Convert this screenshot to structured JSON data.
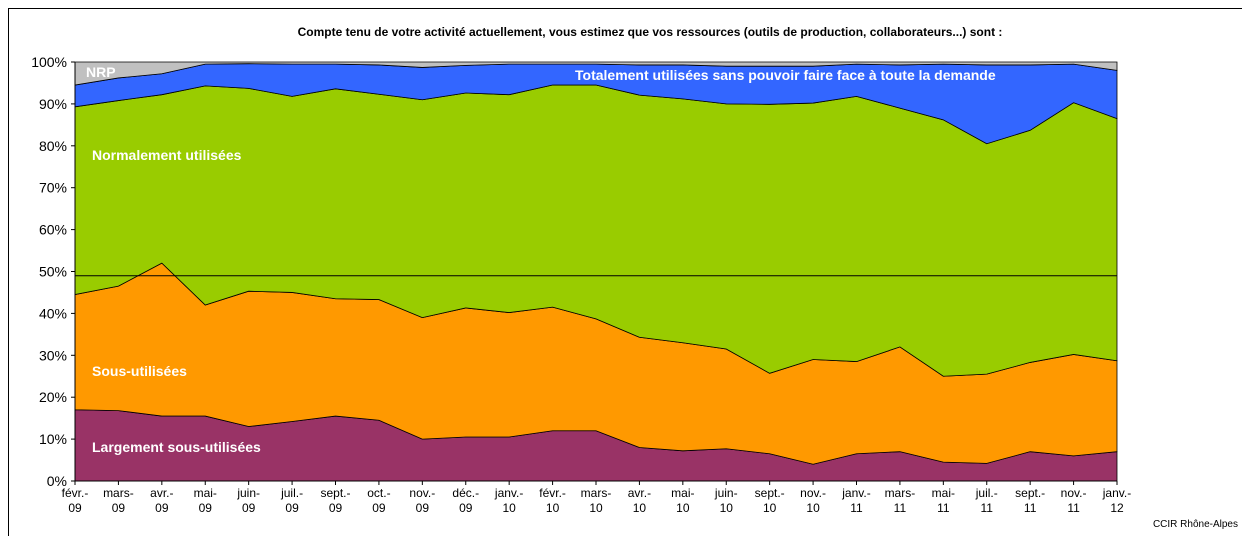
{
  "chart_data": {
    "type": "stacked_area",
    "title": "Compte tenu de votre activité actuellement, vous estimez que vos ressources (outils de production, collaborateurs...) sont :",
    "source": "CCIR Rhône-Alpes",
    "categories": [
      "févr.-\n09",
      "mars-\n09",
      "avr.-\n09",
      "mai-\n09",
      "juin-\n09",
      "juil.-\n09",
      "sept.-\n09",
      "oct.-\n09",
      "nov.-\n09",
      "déc.-\n09",
      "janv.-\n10",
      "févr.-\n10",
      "mars-\n10",
      "avr.-\n10",
      "mai-\n10",
      "juin-\n10",
      "sept.-\n10",
      "nov.-\n10",
      "janv.-\n11",
      "mars-\n11",
      "mai-\n11",
      "juil.-\n11",
      "sept.-\n11",
      "nov.-\n11",
      "janv.-\n12"
    ],
    "series": [
      {
        "name": "Largement sous-utilisées",
        "color": "#993366",
        "values": [
          17,
          16.8,
          15.5,
          15.5,
          13,
          14.2,
          15.5,
          14.5,
          10,
          10.5,
          10.5,
          12,
          12,
          8,
          7.2,
          7.7,
          6.5,
          4,
          6.5,
          7,
          4.5,
          4.2,
          7,
          6,
          7
        ]
      },
      {
        "name": "Sous-utilisées",
        "color": "#ff9900",
        "values": [
          27.5,
          29.7,
          36.5,
          26.5,
          32.3,
          30.8,
          28,
          28.8,
          29,
          30.8,
          29.7,
          29.5,
          26.7,
          26.3,
          25.8,
          23.8,
          19.2,
          25,
          22,
          25,
          20.5,
          21.3,
          21.3,
          24.2,
          21.7
        ]
      },
      {
        "name": "Normalement utilisées",
        "color": "#99cc00",
        "values": [
          44.8,
          44.3,
          40.2,
          52.3,
          48.4,
          46.8,
          50.1,
          49,
          52,
          51.3,
          52,
          53,
          55.8,
          57.8,
          58.2,
          58.5,
          64.2,
          61.2,
          63.3,
          57,
          61.2,
          55,
          55.4,
          60.1,
          57.8
        ]
      },
      {
        "name": "Totalement utilisées sans pouvoir faire face à toute la demande",
        "color": "#3366ff",
        "values": [
          5.2,
          5.4,
          5,
          5.2,
          5.9,
          7.7,
          5.9,
          7,
          7.7,
          6.6,
          7.3,
          5,
          5,
          7.2,
          8.1,
          9,
          9.1,
          8.8,
          7.7,
          10.3,
          13.3,
          18.8,
          15.6,
          9.2,
          11.5
        ]
      },
      {
        "name": "NRP",
        "color": "#c0c0c0",
        "values": [
          5.5,
          3.8,
          2.8,
          0.5,
          0.4,
          0.5,
          0.5,
          0.7,
          1.3,
          0.8,
          0.5,
          0.5,
          0.5,
          0.7,
          0.7,
          1,
          1,
          1,
          0.5,
          0.7,
          0.5,
          0.7,
          0.7,
          0.5,
          2
        ]
      }
    ],
    "reference_line": 49,
    "ylim": [
      0,
      100
    ],
    "yticks": [
      {
        "value": 0,
        "label": "0%"
      },
      {
        "value": 10,
        "label": "10%"
      },
      {
        "value": 20,
        "label": "20%"
      },
      {
        "value": 30,
        "label": "30%"
      },
      {
        "value": 40,
        "label": "40%"
      },
      {
        "value": 50,
        "label": "50%"
      },
      {
        "value": 60,
        "label": "60%"
      },
      {
        "value": 70,
        "label": "70%"
      },
      {
        "value": 80,
        "label": "80%"
      },
      {
        "value": 90,
        "label": "90%"
      },
      {
        "value": 100,
        "label": "100%"
      }
    ],
    "grid": false
  }
}
